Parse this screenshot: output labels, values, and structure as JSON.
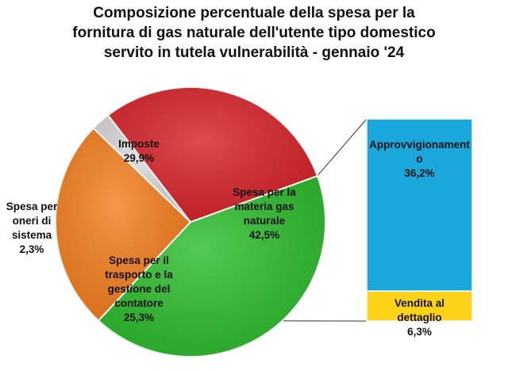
{
  "chart_data": {
    "type": "pie",
    "title_lines": [
      "Composizione percentuale della spesa per la",
      "fornitura di gas naturale dell'utente tipo domestico",
      "servito in tutela vulnerabilità - gennaio '24"
    ],
    "slices": [
      {
        "key": "materia",
        "label_lines": [
          "Spesa per la",
          "materia gas",
          "naturale"
        ],
        "value_label": "42,5%",
        "value": 42.5,
        "color": "#2fbf2f"
      },
      {
        "key": "trasporto",
        "label_lines": [
          "Spesa per il",
          "trasporto e la",
          "gestione del",
          "contatore"
        ],
        "value_label": "25,3%",
        "value": 25.3,
        "color": "#f5801f"
      },
      {
        "key": "oneri",
        "label_lines": [
          "Spesa per",
          "oneri di",
          "sistema"
        ],
        "value_label": "2,3%",
        "value": 2.3,
        "color": "#d9d9d9"
      },
      {
        "key": "imposte",
        "label_lines": [
          "Imposte"
        ],
        "value_label": "29,9%",
        "value": 29.9,
        "color": "#d8242a"
      }
    ],
    "breakdown": {
      "of": "materia",
      "segments": [
        {
          "key": "approvvigionamento",
          "label_lines": [
            "Approvvigionament",
            "o"
          ],
          "value_label": "36,2%",
          "value": 36.2,
          "color": "#1aa7dc"
        },
        {
          "key": "vendita",
          "label_lines": [
            "Vendita al",
            "dettaglio"
          ],
          "value_label": "6,3%",
          "value": 6.3,
          "color": "#ffd21a"
        }
      ]
    }
  }
}
